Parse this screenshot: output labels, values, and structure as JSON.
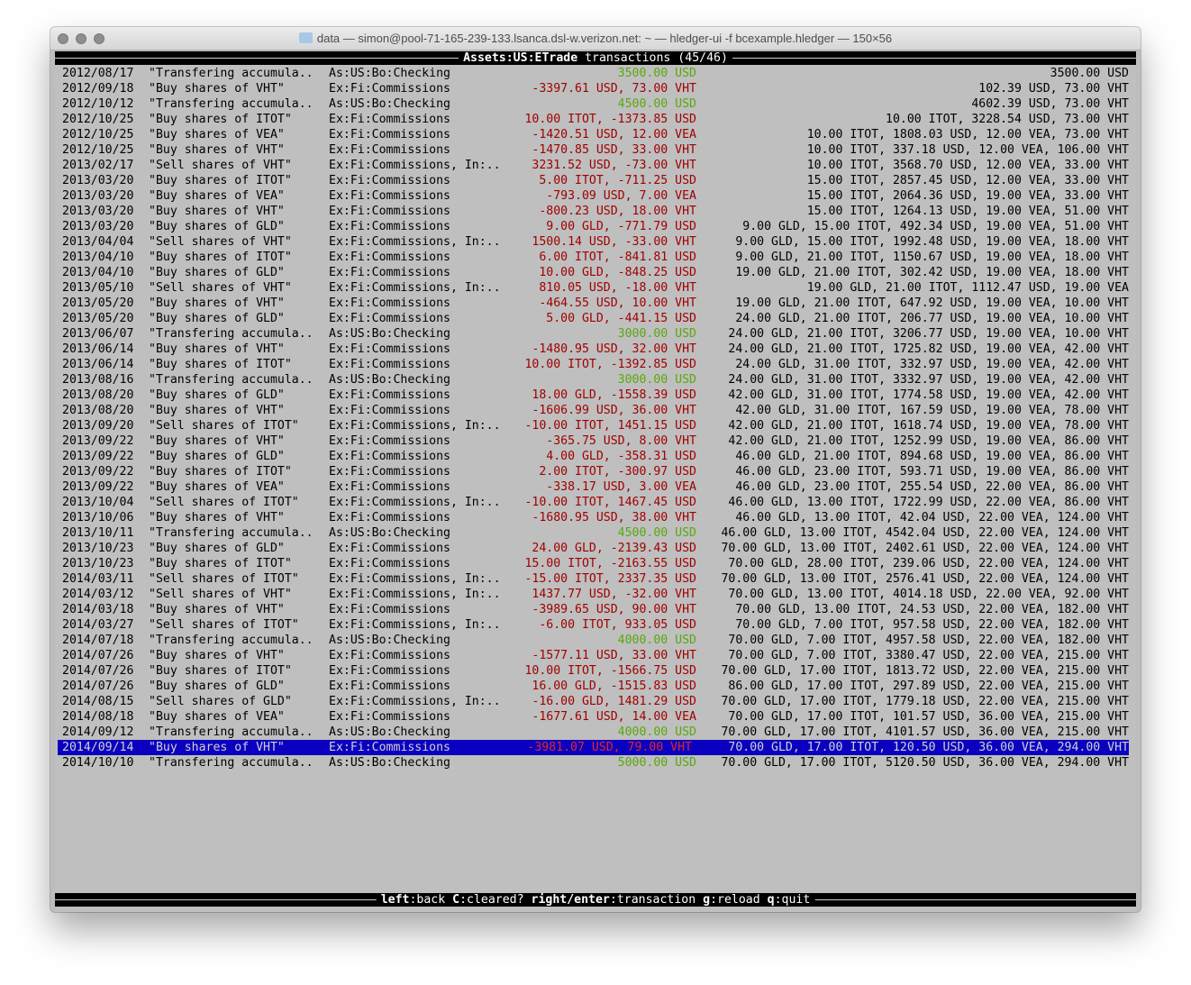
{
  "window": {
    "title": "data — simon@pool-71-165-239-133.lsanca.dsl-w.verizon.net: ~ — hledger-ui -f bcexample.hledger — 150×56"
  },
  "header": {
    "account": "Assets:US:ETrade",
    "suffix": " transactions (45/46)"
  },
  "footer": {
    "keys": [
      {
        "key": "left",
        "label": "back"
      },
      {
        "key": "C",
        "label": "cleared?"
      },
      {
        "key": "right/enter",
        "label": "transaction"
      },
      {
        "key": "g",
        "label": "reload"
      },
      {
        "key": "q",
        "label": "quit"
      }
    ]
  },
  "colors": {
    "positive": "#5aa80c",
    "negative": "#a00000",
    "selection": "#0c00c0",
    "background": "#bfbfbf"
  },
  "selected_index": 44,
  "rows": [
    [
      "2012/08/17",
      "\"Transfering accumula..",
      "As:US:Bo:Checking",
      "3500.00 USD",
      "pos",
      "3500.00 USD"
    ],
    [
      "2012/09/18",
      "\"Buy shares of VHT\"",
      "Ex:Fi:Commissions",
      "-3397.61 USD, 73.00 VHT",
      "neg",
      "102.39 USD, 73.00 VHT"
    ],
    [
      "2012/10/12",
      "\"Transfering accumula..",
      "As:US:Bo:Checking",
      "4500.00 USD",
      "pos",
      "4602.39 USD, 73.00 VHT"
    ],
    [
      "2012/10/25",
      "\"Buy shares of ITOT\"",
      "Ex:Fi:Commissions",
      "10.00 ITOT, -1373.85 USD",
      "neg",
      "10.00 ITOT, 3228.54 USD, 73.00 VHT"
    ],
    [
      "2012/10/25",
      "\"Buy shares of VEA\"",
      "Ex:Fi:Commissions",
      "-1420.51 USD, 12.00 VEA",
      "neg",
      "10.00 ITOT, 1808.03 USD, 12.00 VEA, 73.00 VHT"
    ],
    [
      "2012/10/25",
      "\"Buy shares of VHT\"",
      "Ex:Fi:Commissions",
      "-1470.85 USD, 33.00 VHT",
      "neg",
      "10.00 ITOT, 337.18 USD, 12.00 VEA, 106.00 VHT"
    ],
    [
      "2013/02/17",
      "\"Sell shares of VHT\"",
      "Ex:Fi:Commissions, In:..",
      "3231.52 USD, -73.00 VHT",
      "neg",
      "10.00 ITOT, 3568.70 USD, 12.00 VEA, 33.00 VHT"
    ],
    [
      "2013/03/20",
      "\"Buy shares of ITOT\"",
      "Ex:Fi:Commissions",
      "5.00 ITOT, -711.25 USD",
      "neg",
      "15.00 ITOT, 2857.45 USD, 12.00 VEA, 33.00 VHT"
    ],
    [
      "2013/03/20",
      "\"Buy shares of VEA\"",
      "Ex:Fi:Commissions",
      "-793.09 USD, 7.00 VEA",
      "neg",
      "15.00 ITOT, 2064.36 USD, 19.00 VEA, 33.00 VHT"
    ],
    [
      "2013/03/20",
      "\"Buy shares of VHT\"",
      "Ex:Fi:Commissions",
      "-800.23 USD, 18.00 VHT",
      "neg",
      "15.00 ITOT, 1264.13 USD, 19.00 VEA, 51.00 VHT"
    ],
    [
      "2013/03/20",
      "\"Buy shares of GLD\"",
      "Ex:Fi:Commissions",
      "9.00 GLD, -771.79 USD",
      "neg",
      "9.00 GLD, 15.00 ITOT, 492.34 USD, 19.00 VEA, 51.00 VHT"
    ],
    [
      "2013/04/04",
      "\"Sell shares of VHT\"",
      "Ex:Fi:Commissions, In:..",
      "1500.14 USD, -33.00 VHT",
      "neg",
      "9.00 GLD, 15.00 ITOT, 1992.48 USD, 19.00 VEA, 18.00 VHT"
    ],
    [
      "2013/04/10",
      "\"Buy shares of ITOT\"",
      "Ex:Fi:Commissions",
      "6.00 ITOT, -841.81 USD",
      "neg",
      "9.00 GLD, 21.00 ITOT, 1150.67 USD, 19.00 VEA, 18.00 VHT"
    ],
    [
      "2013/04/10",
      "\"Buy shares of GLD\"",
      "Ex:Fi:Commissions",
      "10.00 GLD, -848.25 USD",
      "neg",
      "19.00 GLD, 21.00 ITOT, 302.42 USD, 19.00 VEA, 18.00 VHT"
    ],
    [
      "2013/05/10",
      "\"Sell shares of VHT\"",
      "Ex:Fi:Commissions, In:..",
      "810.05 USD, -18.00 VHT",
      "neg",
      "19.00 GLD, 21.00 ITOT, 1112.47 USD, 19.00 VEA"
    ],
    [
      "2013/05/20",
      "\"Buy shares of VHT\"",
      "Ex:Fi:Commissions",
      "-464.55 USD, 10.00 VHT",
      "neg",
      "19.00 GLD, 21.00 ITOT, 647.92 USD, 19.00 VEA, 10.00 VHT"
    ],
    [
      "2013/05/20",
      "\"Buy shares of GLD\"",
      "Ex:Fi:Commissions",
      "5.00 GLD, -441.15 USD",
      "neg",
      "24.00 GLD, 21.00 ITOT, 206.77 USD, 19.00 VEA, 10.00 VHT"
    ],
    [
      "2013/06/07",
      "\"Transfering accumula..",
      "As:US:Bo:Checking",
      "3000.00 USD",
      "pos",
      "24.00 GLD, 21.00 ITOT, 3206.77 USD, 19.00 VEA, 10.00 VHT"
    ],
    [
      "2013/06/14",
      "\"Buy shares of VHT\"",
      "Ex:Fi:Commissions",
      "-1480.95 USD, 32.00 VHT",
      "neg",
      "24.00 GLD, 21.00 ITOT, 1725.82 USD, 19.00 VEA, 42.00 VHT"
    ],
    [
      "2013/06/14",
      "\"Buy shares of ITOT\"",
      "Ex:Fi:Commissions",
      "10.00 ITOT, -1392.85 USD",
      "neg",
      "24.00 GLD, 31.00 ITOT, 332.97 USD, 19.00 VEA, 42.00 VHT"
    ],
    [
      "2013/08/16",
      "\"Transfering accumula..",
      "As:US:Bo:Checking",
      "3000.00 USD",
      "pos",
      "24.00 GLD, 31.00 ITOT, 3332.97 USD, 19.00 VEA, 42.00 VHT"
    ],
    [
      "2013/08/20",
      "\"Buy shares of GLD\"",
      "Ex:Fi:Commissions",
      "18.00 GLD, -1558.39 USD",
      "neg",
      "42.00 GLD, 31.00 ITOT, 1774.58 USD, 19.00 VEA, 42.00 VHT"
    ],
    [
      "2013/08/20",
      "\"Buy shares of VHT\"",
      "Ex:Fi:Commissions",
      "-1606.99 USD, 36.00 VHT",
      "neg",
      "42.00 GLD, 31.00 ITOT, 167.59 USD, 19.00 VEA, 78.00 VHT"
    ],
    [
      "2013/09/20",
      "\"Sell shares of ITOT\"",
      "Ex:Fi:Commissions, In:..",
      "-10.00 ITOT, 1451.15 USD",
      "neg",
      "42.00 GLD, 21.00 ITOT, 1618.74 USD, 19.00 VEA, 78.00 VHT"
    ],
    [
      "2013/09/22",
      "\"Buy shares of VHT\"",
      "Ex:Fi:Commissions",
      "-365.75 USD, 8.00 VHT",
      "neg",
      "42.00 GLD, 21.00 ITOT, 1252.99 USD, 19.00 VEA, 86.00 VHT"
    ],
    [
      "2013/09/22",
      "\"Buy shares of GLD\"",
      "Ex:Fi:Commissions",
      "4.00 GLD, -358.31 USD",
      "neg",
      "46.00 GLD, 21.00 ITOT, 894.68 USD, 19.00 VEA, 86.00 VHT"
    ],
    [
      "2013/09/22",
      "\"Buy shares of ITOT\"",
      "Ex:Fi:Commissions",
      "2.00 ITOT, -300.97 USD",
      "neg",
      "46.00 GLD, 23.00 ITOT, 593.71 USD, 19.00 VEA, 86.00 VHT"
    ],
    [
      "2013/09/22",
      "\"Buy shares of VEA\"",
      "Ex:Fi:Commissions",
      "-338.17 USD, 3.00 VEA",
      "neg",
      "46.00 GLD, 23.00 ITOT, 255.54 USD, 22.00 VEA, 86.00 VHT"
    ],
    [
      "2013/10/04",
      "\"Sell shares of ITOT\"",
      "Ex:Fi:Commissions, In:..",
      "-10.00 ITOT, 1467.45 USD",
      "neg",
      "46.00 GLD, 13.00 ITOT, 1722.99 USD, 22.00 VEA, 86.00 VHT"
    ],
    [
      "2013/10/06",
      "\"Buy shares of VHT\"",
      "Ex:Fi:Commissions",
      "-1680.95 USD, 38.00 VHT",
      "neg",
      "46.00 GLD, 13.00 ITOT, 42.04 USD, 22.00 VEA, 124.00 VHT"
    ],
    [
      "2013/10/11",
      "\"Transfering accumula..",
      "As:US:Bo:Checking",
      "4500.00 USD",
      "pos",
      "46.00 GLD, 13.00 ITOT, 4542.04 USD, 22.00 VEA, 124.00 VHT"
    ],
    [
      "2013/10/23",
      "\"Buy shares of GLD\"",
      "Ex:Fi:Commissions",
      "24.00 GLD, -2139.43 USD",
      "neg",
      "70.00 GLD, 13.00 ITOT, 2402.61 USD, 22.00 VEA, 124.00 VHT"
    ],
    [
      "2013/10/23",
      "\"Buy shares of ITOT\"",
      "Ex:Fi:Commissions",
      "15.00 ITOT, -2163.55 USD",
      "neg",
      "70.00 GLD, 28.00 ITOT, 239.06 USD, 22.00 VEA, 124.00 VHT"
    ],
    [
      "2014/03/11",
      "\"Sell shares of ITOT\"",
      "Ex:Fi:Commissions, In:..",
      "-15.00 ITOT, 2337.35 USD",
      "neg",
      "70.00 GLD, 13.00 ITOT, 2576.41 USD, 22.00 VEA, 124.00 VHT"
    ],
    [
      "2014/03/12",
      "\"Sell shares of VHT\"",
      "Ex:Fi:Commissions, In:..",
      "1437.77 USD, -32.00 VHT",
      "neg",
      "70.00 GLD, 13.00 ITOT, 4014.18 USD, 22.00 VEA, 92.00 VHT"
    ],
    [
      "2014/03/18",
      "\"Buy shares of VHT\"",
      "Ex:Fi:Commissions",
      "-3989.65 USD, 90.00 VHT",
      "neg",
      "70.00 GLD, 13.00 ITOT, 24.53 USD, 22.00 VEA, 182.00 VHT"
    ],
    [
      "2014/03/27",
      "\"Sell shares of ITOT\"",
      "Ex:Fi:Commissions, In:..",
      "-6.00 ITOT, 933.05 USD",
      "neg",
      "70.00 GLD, 7.00 ITOT, 957.58 USD, 22.00 VEA, 182.00 VHT"
    ],
    [
      "2014/07/18",
      "\"Transfering accumula..",
      "As:US:Bo:Checking",
      "4000.00 USD",
      "pos",
      "70.00 GLD, 7.00 ITOT, 4957.58 USD, 22.00 VEA, 182.00 VHT"
    ],
    [
      "2014/07/26",
      "\"Buy shares of VHT\"",
      "Ex:Fi:Commissions",
      "-1577.11 USD, 33.00 VHT",
      "neg",
      "70.00 GLD, 7.00 ITOT, 3380.47 USD, 22.00 VEA, 215.00 VHT"
    ],
    [
      "2014/07/26",
      "\"Buy shares of ITOT\"",
      "Ex:Fi:Commissions",
      "10.00 ITOT, -1566.75 USD",
      "neg",
      "70.00 GLD, 17.00 ITOT, 1813.72 USD, 22.00 VEA, 215.00 VHT"
    ],
    [
      "2014/07/26",
      "\"Buy shares of GLD\"",
      "Ex:Fi:Commissions",
      "16.00 GLD, -1515.83 USD",
      "neg",
      "86.00 GLD, 17.00 ITOT, 297.89 USD, 22.00 VEA, 215.00 VHT"
    ],
    [
      "2014/08/15",
      "\"Sell shares of GLD\"",
      "Ex:Fi:Commissions, In:..",
      "-16.00 GLD, 1481.29 USD",
      "neg",
      "70.00 GLD, 17.00 ITOT, 1779.18 USD, 22.00 VEA, 215.00 VHT"
    ],
    [
      "2014/08/18",
      "\"Buy shares of VEA\"",
      "Ex:Fi:Commissions",
      "-1677.61 USD, 14.00 VEA",
      "neg",
      "70.00 GLD, 17.00 ITOT, 101.57 USD, 36.00 VEA, 215.00 VHT"
    ],
    [
      "2014/09/12",
      "\"Transfering accumula..",
      "As:US:Bo:Checking",
      "4000.00 USD",
      "pos",
      "70.00 GLD, 17.00 ITOT, 4101.57 USD, 36.00 VEA, 215.00 VHT"
    ],
    [
      "2014/09/14",
      "\"Buy shares of VHT\"",
      "Ex:Fi:Commissions",
      "-3981.07 USD, 79.00 VHT",
      "neg",
      "70.00 GLD, 17.00 ITOT, 120.50 USD, 36.00 VEA, 294.00 VHT"
    ],
    [
      "2014/10/10",
      "\"Transfering accumula..",
      "As:US:Bo:Checking",
      "5000.00 USD",
      "pos",
      "70.00 GLD, 17.00 ITOT, 5120.50 USD, 36.00 VEA, 294.00 VHT"
    ]
  ]
}
